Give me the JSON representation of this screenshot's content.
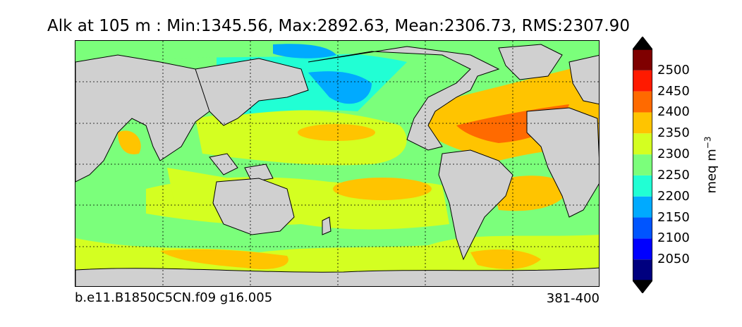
{
  "title": "Alk at 105 m : Min:1345.56, Max:2892.63, Mean:2306.73, RMS:2307.90",
  "case_name": "b.e11.B1850C5CN.f09 g16.005",
  "years": "381-400",
  "colorbar": {
    "units": "meq m",
    "units_exponent": "−3",
    "levels": [
      "2050",
      "2100",
      "2150",
      "2200",
      "2250",
      "2300",
      "2350",
      "2400",
      "2450",
      "2500"
    ],
    "colors": [
      "#00007f",
      "#0000ff",
      "#0055ff",
      "#00aaff",
      "#21ffd4",
      "#7bff7b",
      "#d4ff21",
      "#ffc400",
      "#ff6a00",
      "#ff1a00",
      "#7f0000"
    ]
  },
  "map": {
    "land_color": "#d0d0d0",
    "gridlines": "dotted",
    "projection": "global lat-lon"
  }
}
